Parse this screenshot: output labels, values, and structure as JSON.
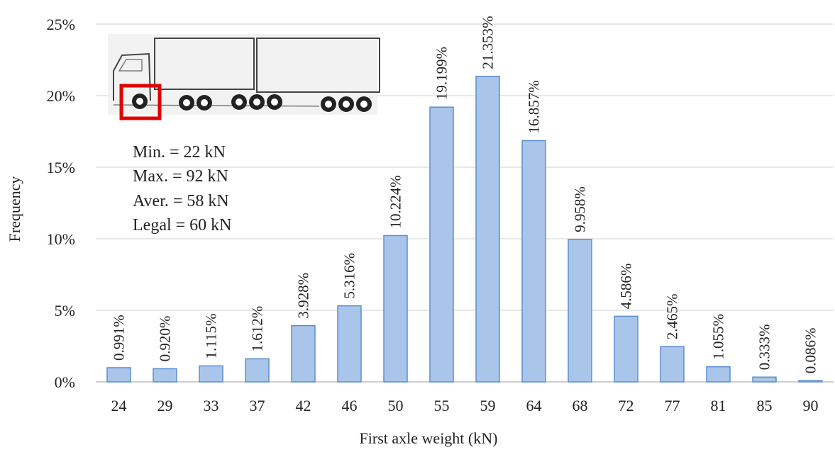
{
  "chart_data": {
    "type": "bar",
    "xlabel": "First axle weight (kN)",
    "ylabel": "Frequency",
    "ylim": [
      0,
      25
    ],
    "yticks": [
      "0%",
      "5%",
      "10%",
      "15%",
      "20%",
      "25%"
    ],
    "grid": true,
    "categories": [
      "24",
      "29",
      "33",
      "37",
      "42",
      "46",
      "50",
      "55",
      "59",
      "64",
      "68",
      "72",
      "77",
      "81",
      "85",
      "90"
    ],
    "values": [
      0.991,
      0.92,
      1.115,
      1.612,
      3.928,
      5.316,
      10.224,
      19.199,
      21.353,
      16.857,
      9.958,
      4.586,
      2.465,
      1.055,
      0.333,
      0.086
    ],
    "data_labels": [
      "0.991%",
      "0.920%",
      "1.115%",
      "1.612%",
      "3.928%",
      "5.316%",
      "10.224%",
      "19.199%",
      "21.353%",
      "16.857%",
      "9.958%",
      "4.586%",
      "2.465%",
      "1.055%",
      "0.333%",
      "0.086%"
    ],
    "annotations": [
      "Min. = 22 kN",
      "Max. = 92 kN",
      "Aver. = 58 kN",
      "Legal = 60 kN"
    ],
    "colors": {
      "bar_fill": "#a9c6ea",
      "bar_stroke": "#5b8fd0",
      "highlight": "#e00000"
    },
    "inset_image": "truck-icon"
  }
}
